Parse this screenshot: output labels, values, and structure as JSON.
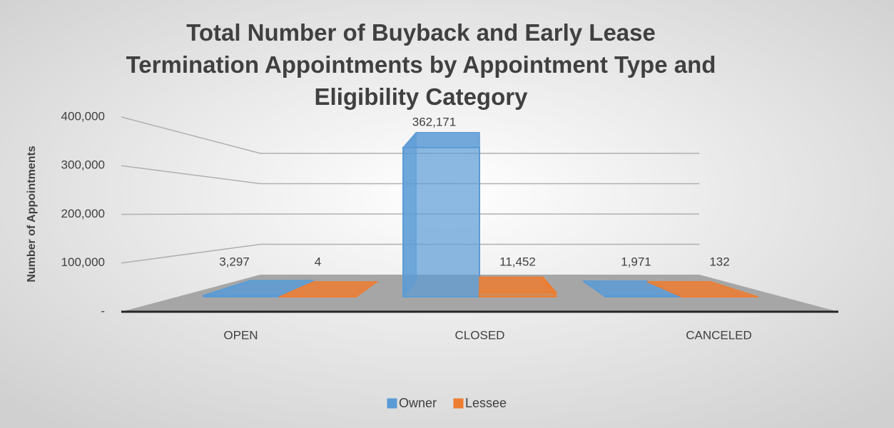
{
  "chart_data": {
    "type": "bar3d",
    "title": "Total Number of Buyback and Early Lease Termination Appointments by Appointment Type and Eligibility Category",
    "ylabel": "Number of Appointments",
    "categories": [
      "OPEN",
      "CLOSED",
      "CANCELED"
    ],
    "series": [
      {
        "name": "Owner",
        "color": "#5b9bd5",
        "values": [
          3297,
          362171,
          1971
        ],
        "value_labels": [
          "3,297",
          "362,171",
          "1,971"
        ]
      },
      {
        "name": "Lessee",
        "color": "#ed7d31",
        "values": [
          4,
          11452,
          132
        ],
        "value_labels": [
          "4",
          "11,452",
          "132"
        ]
      }
    ],
    "ylim": [
      0,
      400000
    ],
    "yticks": [
      {
        "value": 0,
        "label": "-"
      },
      {
        "value": 100000,
        "label": "100,000"
      },
      {
        "value": 200000,
        "label": "200,000"
      },
      {
        "value": 300000,
        "label": "300,000"
      },
      {
        "value": 400000,
        "label": "400,000"
      }
    ],
    "grid": true,
    "legend": "bottom"
  }
}
